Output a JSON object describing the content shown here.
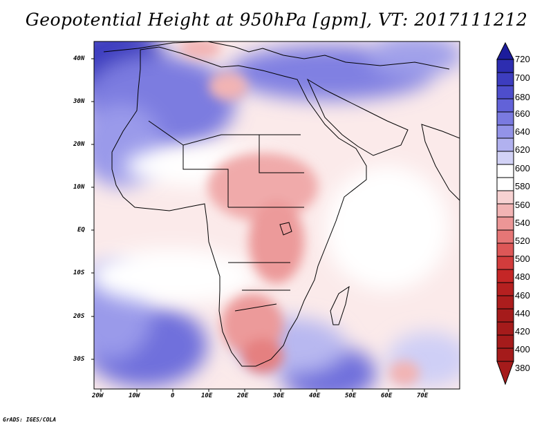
{
  "title": "Geopotential Height at 950hPa [gpm], VT: 2017111212",
  "credit": "GrADS: IGES/COLA",
  "map": {
    "region": "Africa and surrounding seas",
    "projection": "latitude-longitude",
    "lon_labels": [
      "20W",
      "10W",
      "0",
      "10E",
      "20E",
      "30E",
      "40E",
      "50E",
      "60E",
      "70E"
    ],
    "lat_labels": [
      "40N",
      "30N",
      "20N",
      "10N",
      "EQ",
      "10S",
      "20S",
      "30S"
    ],
    "lon_range": [
      -23,
      80
    ],
    "lat_range": [
      -37,
      45
    ],
    "features": [
      {
        "kind": "high",
        "label": "Azores-North Atlantic high",
        "level": 700
      },
      {
        "kind": "high",
        "label": "South Atlantic high",
        "level": 640
      },
      {
        "kind": "high",
        "label": "South Indian Ocean high",
        "level": 640
      },
      {
        "kind": "low",
        "label": "Central/Eastern Africa trough",
        "level": 500
      },
      {
        "kind": "low",
        "label": "Southern Africa heat low",
        "level": 480
      }
    ]
  },
  "colorbar": {
    "levels": [
      "720",
      "700",
      "680",
      "660",
      "640",
      "620",
      "600",
      "580",
      "560",
      "540",
      "520",
      "500",
      "480",
      "460",
      "440",
      "420",
      "400",
      "380"
    ],
    "colors": [
      "#1c1c9c",
      "#2d2db0",
      "#3d3dbf",
      "#4e4ecc",
      "#6262d8",
      "#7a7ae0",
      "#9393e8",
      "#b1b1ef",
      "#d2d2f6",
      "#ffffff",
      "#f7d2d2",
      "#f2b4b4",
      "#ec9696",
      "#e57676",
      "#dd5757",
      "#d23c3c",
      "#c42626",
      "#a51b1b"
    ]
  }
}
